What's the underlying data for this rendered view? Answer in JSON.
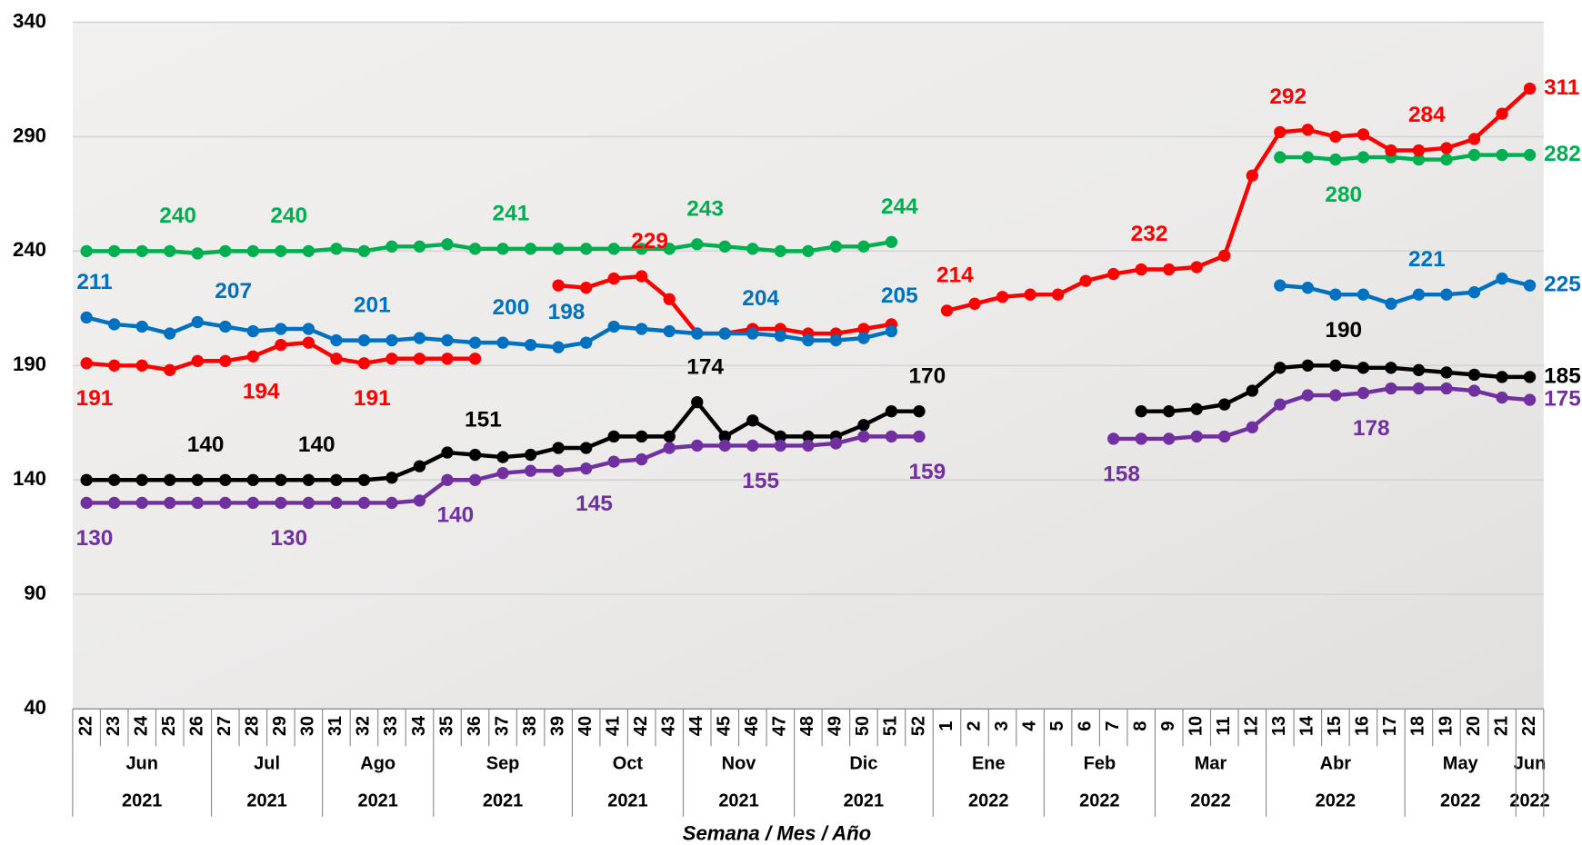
{
  "chart_data": {
    "type": "line",
    "x_title": "Semana / Mes / Año",
    "categories": [
      "22",
      "23",
      "24",
      "25",
      "26",
      "27",
      "28",
      "29",
      "30",
      "31",
      "32",
      "33",
      "34",
      "35",
      "36",
      "37",
      "38",
      "39",
      "40",
      "41",
      "42",
      "43",
      "44",
      "45",
      "46",
      "47",
      "48",
      "49",
      "50",
      "51",
      "52",
      "1",
      "2",
      "3",
      "4",
      "5",
      "6",
      "7",
      "8",
      "9",
      "10",
      "11",
      "12",
      "13",
      "14",
      "15",
      "16",
      "17",
      "18",
      "19",
      "20",
      "21",
      "22"
    ],
    "groups": [
      {
        "month": "Jun",
        "year": "2021",
        "weeks": 5
      },
      {
        "month": "Jul",
        "year": "2021",
        "weeks": 4
      },
      {
        "month": "Ago",
        "year": "2021",
        "weeks": 4
      },
      {
        "month": "Sep",
        "year": "2021",
        "weeks": 5
      },
      {
        "month": "Oct",
        "year": "2021",
        "weeks": 4
      },
      {
        "month": "Nov",
        "year": "2021",
        "weeks": 4
      },
      {
        "month": "Dic",
        "year": "2021",
        "weeks": 5
      },
      {
        "month": "Ene",
        "year": "2022",
        "weeks": 4
      },
      {
        "month": "Feb",
        "year": "2022",
        "weeks": 4
      },
      {
        "month": "Mar",
        "year": "2022",
        "weeks": 4
      },
      {
        "month": "Abr",
        "year": "2022",
        "weeks": 5
      },
      {
        "month": "May",
        "year": "2022",
        "weeks": 4
      },
      {
        "month": "Jun",
        "year": "2022",
        "weeks": 1
      }
    ],
    "ylim": [
      40,
      340
    ],
    "yticks": [
      40,
      90,
      140,
      190,
      240,
      290,
      340
    ],
    "grid": true,
    "series": [
      {
        "color": "#00b050",
        "values": [
          240,
          240,
          240,
          240,
          239,
          240,
          240,
          240,
          240,
          241,
          240,
          242,
          242,
          243,
          241,
          241,
          241,
          241,
          241,
          241,
          241,
          241,
          243,
          242,
          241,
          240,
          240,
          242,
          242,
          244,
          null,
          null,
          null,
          null,
          null,
          null,
          null,
          null,
          null,
          null,
          null,
          null,
          null,
          281,
          281,
          280,
          281,
          281,
          280,
          280,
          282,
          282,
          282
        ],
        "value_labels": [
          null,
          null,
          null,
          "240",
          null,
          null,
          null,
          "240",
          null,
          null,
          null,
          null,
          null,
          null,
          null,
          "241",
          null,
          null,
          null,
          null,
          null,
          null,
          "243",
          null,
          null,
          null,
          null,
          null,
          null,
          "244",
          null,
          null,
          null,
          null,
          null,
          null,
          null,
          null,
          null,
          null,
          null,
          null,
          null,
          null,
          null,
          "280",
          null,
          null,
          null,
          null,
          null,
          null,
          "282"
        ]
      },
      {
        "color": "#ff0000",
        "values": [
          191,
          190,
          190,
          188,
          192,
          192,
          194,
          199,
          200,
          193,
          191,
          193,
          193,
          193,
          193,
          null,
          null,
          225,
          224,
          228,
          229,
          219,
          204,
          204,
          206,
          206,
          204,
          204,
          206,
          208,
          null,
          214,
          217,
          220,
          221,
          221,
          227,
          230,
          232,
          232,
          233,
          238,
          273,
          292,
          293,
          290,
          291,
          284,
          284,
          285,
          289,
          300,
          311
        ],
        "value_labels": [
          "191",
          null,
          null,
          null,
          null,
          null,
          "194",
          null,
          null,
          null,
          "191",
          null,
          null,
          null,
          null,
          null,
          null,
          null,
          null,
          null,
          "229",
          null,
          null,
          null,
          null,
          null,
          null,
          null,
          null,
          null,
          null,
          "214",
          null,
          null,
          null,
          null,
          null,
          null,
          "232",
          null,
          null,
          null,
          null,
          "292",
          null,
          null,
          null,
          null,
          "284",
          null,
          null,
          null,
          "311"
        ]
      },
      {
        "color": "#0070c0",
        "values": [
          211,
          208,
          207,
          204,
          209,
          207,
          205,
          206,
          206,
          201,
          201,
          201,
          202,
          201,
          200,
          200,
          199,
          198,
          200,
          207,
          206,
          205,
          204,
          204,
          204,
          203,
          201,
          201,
          202,
          205,
          null,
          null,
          null,
          null,
          null,
          null,
          null,
          null,
          null,
          null,
          null,
          null,
          null,
          225,
          224,
          221,
          221,
          217,
          221,
          221,
          222,
          228,
          225
        ],
        "value_labels": [
          "211",
          null,
          null,
          null,
          null,
          "207",
          null,
          null,
          null,
          null,
          "201",
          null,
          null,
          null,
          null,
          "200",
          null,
          "198",
          null,
          null,
          null,
          null,
          null,
          null,
          "204",
          null,
          null,
          null,
          null,
          "205",
          null,
          null,
          null,
          null,
          null,
          null,
          null,
          null,
          null,
          null,
          null,
          null,
          null,
          null,
          null,
          null,
          null,
          null,
          "221",
          null,
          null,
          null,
          "225"
        ]
      },
      {
        "color": "#000000",
        "values": [
          140,
          140,
          140,
          140,
          140,
          140,
          140,
          140,
          140,
          140,
          140,
          141,
          146,
          152,
          151,
          150,
          151,
          154,
          154,
          159,
          159,
          159,
          174,
          159,
          166,
          159,
          159,
          159,
          164,
          170,
          170,
          null,
          null,
          null,
          null,
          null,
          null,
          null,
          170,
          170,
          171,
          173,
          179,
          189,
          190,
          190,
          189,
          189,
          188,
          187,
          186,
          185,
          185
        ],
        "value_labels": [
          null,
          null,
          null,
          null,
          "140",
          null,
          null,
          null,
          "140",
          null,
          null,
          null,
          null,
          null,
          "151",
          null,
          null,
          null,
          null,
          null,
          null,
          null,
          "174",
          null,
          null,
          null,
          null,
          null,
          null,
          null,
          "170",
          null,
          null,
          null,
          null,
          null,
          null,
          null,
          null,
          null,
          null,
          null,
          null,
          null,
          null,
          "190",
          null,
          null,
          null,
          null,
          null,
          null,
          "185"
        ]
      },
      {
        "color": "#7030a0",
        "values": [
          130,
          130,
          130,
          130,
          130,
          130,
          130,
          130,
          130,
          130,
          130,
          130,
          131,
          140,
          140,
          143,
          144,
          144,
          145,
          148,
          149,
          154,
          155,
          155,
          155,
          155,
          155,
          156,
          159,
          159,
          159,
          null,
          null,
          null,
          null,
          null,
          null,
          158,
          158,
          158,
          159,
          159,
          163,
          173,
          177,
          177,
          178,
          180,
          180,
          180,
          179,
          176,
          175
        ],
        "value_labels": [
          "130",
          null,
          null,
          null,
          null,
          null,
          null,
          "130",
          null,
          null,
          null,
          null,
          null,
          "140",
          null,
          null,
          null,
          null,
          "145",
          null,
          null,
          null,
          null,
          null,
          "155",
          null,
          null,
          null,
          null,
          null,
          "159",
          null,
          null,
          null,
          null,
          null,
          null,
          "158",
          null,
          null,
          null,
          null,
          null,
          null,
          null,
          null,
          "178",
          null,
          null,
          null,
          null,
          null,
          "175"
        ]
      }
    ]
  }
}
